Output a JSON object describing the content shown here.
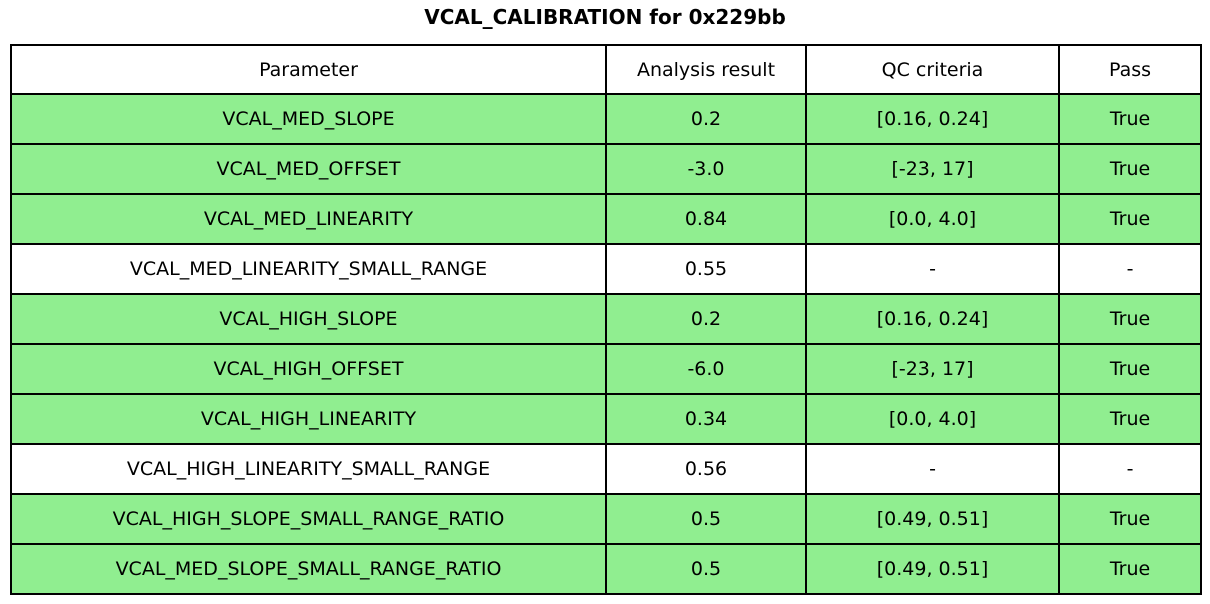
{
  "title": "VCAL_CALIBRATION for 0x229bb",
  "chart_data": {
    "type": "table",
    "title": "VCAL_CALIBRATION for 0x229bb",
    "columns": [
      "Parameter",
      "Analysis result",
      "QC criteria",
      "Pass"
    ],
    "rows": [
      {
        "parameter": "VCAL_MED_SLOPE",
        "result": "0.2",
        "qc": "[0.16, 0.24]",
        "pass": "True",
        "highlight": true
      },
      {
        "parameter": "VCAL_MED_OFFSET",
        "result": "-3.0",
        "qc": "[-23, 17]",
        "pass": "True",
        "highlight": true
      },
      {
        "parameter": "VCAL_MED_LINEARITY",
        "result": "0.84",
        "qc": "[0.0, 4.0]",
        "pass": "True",
        "highlight": true
      },
      {
        "parameter": "VCAL_MED_LINEARITY_SMALL_RANGE",
        "result": "0.55",
        "qc": "-",
        "pass": "-",
        "highlight": false
      },
      {
        "parameter": "VCAL_HIGH_SLOPE",
        "result": "0.2",
        "qc": "[0.16, 0.24]",
        "pass": "True",
        "highlight": true
      },
      {
        "parameter": "VCAL_HIGH_OFFSET",
        "result": "-6.0",
        "qc": "[-23, 17]",
        "pass": "True",
        "highlight": true
      },
      {
        "parameter": "VCAL_HIGH_LINEARITY",
        "result": "0.34",
        "qc": "[0.0, 4.0]",
        "pass": "True",
        "highlight": true
      },
      {
        "parameter": "VCAL_HIGH_LINEARITY_SMALL_RANGE",
        "result": "0.56",
        "qc": "-",
        "pass": "-",
        "highlight": false
      },
      {
        "parameter": "VCAL_HIGH_SLOPE_SMALL_RANGE_RATIO",
        "result": "0.5",
        "qc": "[0.49, 0.51]",
        "pass": "True",
        "highlight": true
      },
      {
        "parameter": "VCAL_MED_SLOPE_SMALL_RANGE_RATIO",
        "result": "0.5",
        "qc": "[0.49, 0.51]",
        "pass": "True",
        "highlight": true
      }
    ],
    "layout": {
      "highlighted_row_meaning": "QC passed",
      "grid": "all-borders"
    }
  },
  "colors": {
    "row_pass_green": "#90ee90",
    "row_plain_white": "#ffffff",
    "border_black": "#000000",
    "background": "#ffffff"
  }
}
